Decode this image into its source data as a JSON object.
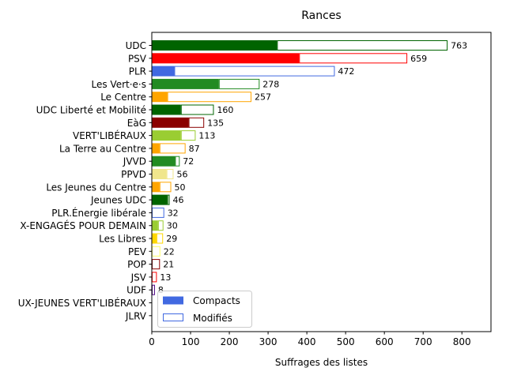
{
  "chart_data": {
    "type": "bar",
    "orientation": "horizontal",
    "stacked": true,
    "title": "Rances",
    "xlabel": "Suffrages des listes",
    "ylabel": "",
    "xlim": [
      0,
      875
    ],
    "xticks": [
      0,
      100,
      200,
      300,
      400,
      500,
      600,
      700,
      800
    ],
    "grid": false,
    "legend": {
      "placement": "lower-left",
      "entries": [
        "Compacts",
        "Modifiés"
      ]
    },
    "legend_colors": {
      "Compacts": "#4169e1",
      "Modifiés": "#4169e1"
    },
    "categories": [
      "UDC",
      "PSV",
      "PLR",
      "Les Vert·e·s",
      "Le Centre",
      "UDC Liberté et Mobilité",
      "EàG",
      "VERT'LIBÉRAUX",
      "La Terre au Centre",
      "JVVD",
      "PPVD",
      "Les Jeunes du Centre",
      "Jeunes UDC",
      "PLR.Énergie libérale",
      "X-ENGAGÉS POUR DEMAIN",
      "Les Libres",
      "PEV",
      "POP",
      "JSV",
      "UDF",
      "UX-JEUNES VERT'LIBÉRAUX",
      "JLRV"
    ],
    "colors": [
      "#006400",
      "#ff0000",
      "#4169e1",
      "#228b22",
      "#ffa500",
      "#006400",
      "#8b0000",
      "#9acd32",
      "#ffa500",
      "#228b22",
      "#f0e68c",
      "#ffa500",
      "#006400",
      "#4169e1",
      "#9acd32",
      "#ffd700",
      "#ffff66",
      "#8b0000",
      "#ff0000",
      "#4b0082",
      "#9acd32",
      "#4169e1"
    ],
    "series": [
      {
        "name": "Compacts",
        "values": [
          323,
          380,
          58,
          173,
          40,
          75,
          95,
          75,
          20,
          60,
          38,
          20,
          40,
          0,
          16,
          12,
          0,
          0,
          0,
          0,
          0,
          0
        ]
      },
      {
        "name": "Modifiés",
        "values": [
          440,
          279,
          414,
          105,
          217,
          85,
          40,
          38,
          67,
          12,
          18,
          30,
          6,
          32,
          14,
          17,
          22,
          21,
          13,
          8,
          0,
          0
        ]
      }
    ],
    "totals": [
      763,
      659,
      472,
      278,
      257,
      160,
      135,
      113,
      87,
      72,
      56,
      50,
      46,
      32,
      30,
      29,
      22,
      21,
      13,
      8,
      null,
      null
    ],
    "total_labels": [
      "763",
      "659",
      "472",
      "278",
      "257",
      "160",
      "135",
      "113",
      "87",
      "72",
      "56",
      "50",
      "46",
      "32",
      "30",
      "29",
      "22",
      "21",
      "13",
      "8",
      "",
      ""
    ]
  }
}
